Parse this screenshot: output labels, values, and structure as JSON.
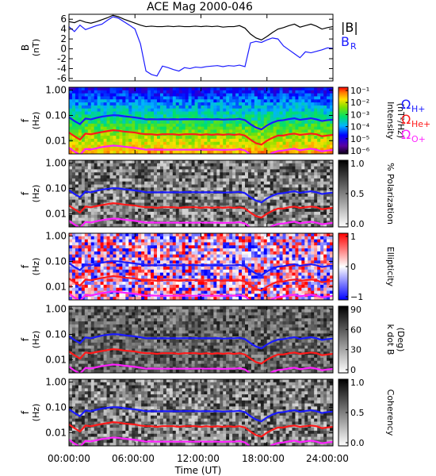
{
  "figure": {
    "title": "ACE Mag 2000-046",
    "xlabel": "Time (UT)",
    "xticks": [
      "00:00:00",
      "06:00:00",
      "12:00:00",
      "18:00:00",
      "24:00:00"
    ],
    "xtick_hours": [
      0,
      6,
      12,
      18,
      24
    ],
    "line_colors": {
      "hplus": "#1a1aff",
      "heplus": "#ff1a1a",
      "oplus": "#ff22ff",
      "btotal": "#000000",
      "br": "#1a1aff"
    }
  },
  "chart_data": [
    {
      "type": "line",
      "panel": "field",
      "ylabel": "B",
      "yunit": "(nT)",
      "ylim": [
        -6.5,
        7
      ],
      "yticks": [
        "6",
        "4",
        "2",
        "0",
        "-2",
        "-4",
        "-6"
      ],
      "ytick_values": [
        6,
        4,
        2,
        0,
        -2,
        -4,
        -6
      ],
      "legend": [
        "|B|",
        "B",
        "R"
      ],
      "series": [
        {
          "name": "|B|",
          "color": "#000000",
          "x": [
            0,
            0.5,
            1,
            1.5,
            2,
            2.5,
            3,
            3.5,
            4,
            4.5,
            5,
            5.5,
            6,
            6.5,
            7,
            7.5,
            8,
            8.5,
            9,
            9.5,
            10,
            10.5,
            11,
            11.5,
            12,
            12.5,
            13,
            13.5,
            14,
            14.5,
            15,
            15.5,
            16,
            16.5,
            17,
            17.5,
            18,
            18.5,
            19,
            19.5,
            20,
            20.5,
            21,
            21.5,
            22,
            22.5,
            23,
            23.5,
            24
          ],
          "y": [
            5.5,
            5.3,
            5.8,
            5.4,
            5.2,
            5.5,
            5.9,
            6.3,
            6.8,
            6.5,
            6.0,
            5.6,
            5.2,
            4.8,
            4.5,
            4.6,
            4.5,
            4.5,
            4.6,
            4.5,
            4.6,
            4.5,
            4.5,
            4.6,
            4.5,
            4.6,
            4.5,
            4.6,
            4.4,
            4.5,
            4.5,
            4.7,
            4.2,
            3.0,
            2.2,
            1.8,
            2.5,
            3.3,
            4.0,
            4.3,
            4.7,
            5.0,
            4.4,
            4.7,
            5.0,
            4.6,
            4.0,
            4.3,
            4.5
          ]
        },
        {
          "name": "B_R",
          "color": "#1a1aff",
          "x": [
            0,
            0.5,
            1,
            1.5,
            2,
            2.5,
            3,
            3.5,
            4,
            4.5,
            5,
            5.5,
            6,
            6.5,
            7,
            7.5,
            8,
            8.5,
            9,
            9.5,
            10,
            10.5,
            11,
            11.5,
            12,
            12.5,
            13,
            13.5,
            14,
            14.5,
            15,
            15.5,
            16,
            16.5,
            17,
            17.5,
            18,
            18.5,
            19,
            19.5,
            20,
            20.5,
            21,
            21.5,
            22,
            22.5,
            23,
            23.5,
            24
          ],
          "y": [
            4.5,
            3.5,
            4.8,
            3.9,
            4.3,
            4.7,
            5.0,
            5.8,
            6.5,
            6.2,
            5.5,
            4.8,
            4.0,
            1.0,
            -4.5,
            -5.2,
            -5.5,
            -3.5,
            -3.8,
            -4.2,
            -4.5,
            -3.8,
            -4.0,
            -3.7,
            -3.8,
            -3.6,
            -3.5,
            -3.4,
            -3.6,
            -3.4,
            -3.5,
            -3.3,
            -3.6,
            1.2,
            1.5,
            1.3,
            1.8,
            2.2,
            2.0,
            0.6,
            -0.2,
            -1.0,
            -1.8,
            -0.6,
            -0.8,
            -0.5,
            -0.2,
            0.2,
            0.1
          ]
        }
      ]
    },
    {
      "type": "heatmap",
      "panel": "intensity",
      "ylabel": "f",
      "yunit": "(Hz)",
      "ylim": [
        0.003,
        1.3
      ],
      "yscale": "log",
      "yticks": [
        "1.00",
        "0.10",
        "0.01"
      ],
      "ytick_values": [
        1,
        0.1,
        0.01
      ],
      "colorbar": {
        "label": "Intensity",
        "unit": "(nT²/Hz)",
        "ticks": [
          "10⁻¹",
          "10⁻²",
          "10⁻³",
          "10⁻⁴",
          "10⁻⁵",
          "10⁻⁶"
        ],
        "range": [
          1e-06,
          0.3
        ],
        "colormap": "rainbow"
      },
      "legend": [
        {
          "symbol": "Ω",
          "sub": "H+",
          "color": "#1a1aff"
        },
        {
          "symbol": "Ω",
          "sub": "He+",
          "color": "#ff1a1a"
        },
        {
          "symbol": "Ω",
          "sub": "O+",
          "color": "#ff22ff"
        }
      ]
    },
    {
      "type": "heatmap",
      "panel": "polarization",
      "ylabel": "f",
      "yunit": "(Hz)",
      "ylim": [
        0.003,
        1.3
      ],
      "yscale": "log",
      "yticks": [
        "1.00",
        "0.10",
        "0.01"
      ],
      "ytick_values": [
        1,
        0.1,
        0.01
      ],
      "colorbar": {
        "label": "% Polarization",
        "ticks": [
          "1.0",
          "0.5",
          "0.0"
        ],
        "range": [
          0,
          1
        ],
        "colormap": "gray"
      }
    },
    {
      "type": "heatmap",
      "panel": "ellipticity",
      "ylabel": "f",
      "yunit": "(Hz)",
      "ylim": [
        0.003,
        1.3
      ],
      "yscale": "log",
      "yticks": [
        "1.00",
        "0.10",
        "0.01"
      ],
      "ytick_values": [
        1,
        0.1,
        0.01
      ],
      "colorbar": {
        "label": "Ellipticity",
        "ticks": [
          "1",
          "0",
          "−1"
        ],
        "range": [
          -1,
          1
        ],
        "colormap": "bwr"
      }
    },
    {
      "type": "heatmap",
      "panel": "kdotb",
      "ylabel": "f",
      "yunit": "(Hz)",
      "ylim": [
        0.003,
        1.3
      ],
      "yscale": "log",
      "yticks": [
        "1.00",
        "0.10",
        "0.01"
      ],
      "ytick_values": [
        1,
        0.1,
        0.01
      ],
      "colorbar": {
        "label": "k dot B",
        "unit": "(Deg)",
        "ticks": [
          "90",
          "60",
          "30",
          "0"
        ],
        "range": [
          0,
          90
        ],
        "colormap": "gray"
      }
    },
    {
      "type": "heatmap",
      "panel": "coherency",
      "ylabel": "f",
      "yunit": "(Hz)",
      "ylim": [
        0.003,
        1.3
      ],
      "yscale": "log",
      "yticks": [
        "1.00",
        "0.10",
        "0.01"
      ],
      "ytick_values": [
        1,
        0.1,
        0.01
      ],
      "colorbar": {
        "label": "Coherency",
        "ticks": [
          "1.0",
          "0.5",
          "0.0"
        ],
        "range": [
          0,
          1
        ],
        "colormap": "gray"
      }
    }
  ],
  "gyrofrequencies": {
    "x": [
      0,
      0.5,
      1,
      1.5,
      2,
      2.5,
      3,
      3.5,
      4,
      4.5,
      5,
      5.5,
      6,
      6.5,
      7,
      7.5,
      8,
      8.5,
      9,
      9.5,
      10,
      10.5,
      11,
      11.5,
      12,
      12.5,
      13,
      13.5,
      14,
      14.5,
      15,
      15.5,
      16,
      16.5,
      17,
      17.5,
      18,
      18.5,
      19,
      19.5,
      20,
      20.5,
      21,
      21.5,
      22,
      22.5,
      23,
      23.5,
      24
    ],
    "hplus": [
      0.085,
      0.06,
      0.045,
      0.075,
      0.07,
      0.08,
      0.09,
      0.096,
      0.102,
      0.1,
      0.093,
      0.088,
      0.083,
      0.077,
      0.07,
      0.071,
      0.07,
      0.071,
      0.07,
      0.071,
      0.07,
      0.071,
      0.071,
      0.071,
      0.07,
      0.071,
      0.07,
      0.071,
      0.068,
      0.07,
      0.07,
      0.073,
      0.065,
      0.045,
      0.033,
      0.028,
      0.04,
      0.052,
      0.062,
      0.065,
      0.072,
      0.077,
      0.067,
      0.072,
      0.077,
      0.07,
      0.06,
      0.065,
      0.068
    ],
    "heplus": [
      0.021,
      0.015,
      0.011,
      0.019,
      0.018,
      0.02,
      0.022,
      0.024,
      0.026,
      0.025,
      0.023,
      0.022,
      0.021,
      0.019,
      0.018,
      0.018,
      0.017,
      0.018,
      0.018,
      0.018,
      0.017,
      0.018,
      0.018,
      0.018,
      0.017,
      0.018,
      0.017,
      0.018,
      0.017,
      0.018,
      0.017,
      0.018,
      0.016,
      0.011,
      0.008,
      0.007,
      0.01,
      0.013,
      0.016,
      0.016,
      0.018,
      0.019,
      0.017,
      0.018,
      0.019,
      0.018,
      0.015,
      0.016,
      0.017
    ],
    "oplus": [
      0.0053,
      0.0037,
      0.0028,
      0.0047,
      0.0045,
      0.005,
      0.0056,
      0.006,
      0.0064,
      0.0062,
      0.0058,
      0.0055,
      0.0052,
      0.0048,
      0.0044,
      0.0045,
      0.0044,
      0.0044,
      0.0044,
      0.0044,
      0.0044,
      0.0044,
      0.0044,
      0.0044,
      0.0044,
      0.0044,
      0.0044,
      0.0044,
      0.0043,
      0.0044,
      0.0044,
      0.0046,
      0.0041,
      0.0028,
      0.0021,
      0.0018,
      0.0025,
      0.0033,
      0.0039,
      0.0041,
      0.0045,
      0.0048,
      0.0042,
      0.0045,
      0.0048,
      0.0044,
      0.0038,
      0.0041,
      0.0043
    ]
  }
}
